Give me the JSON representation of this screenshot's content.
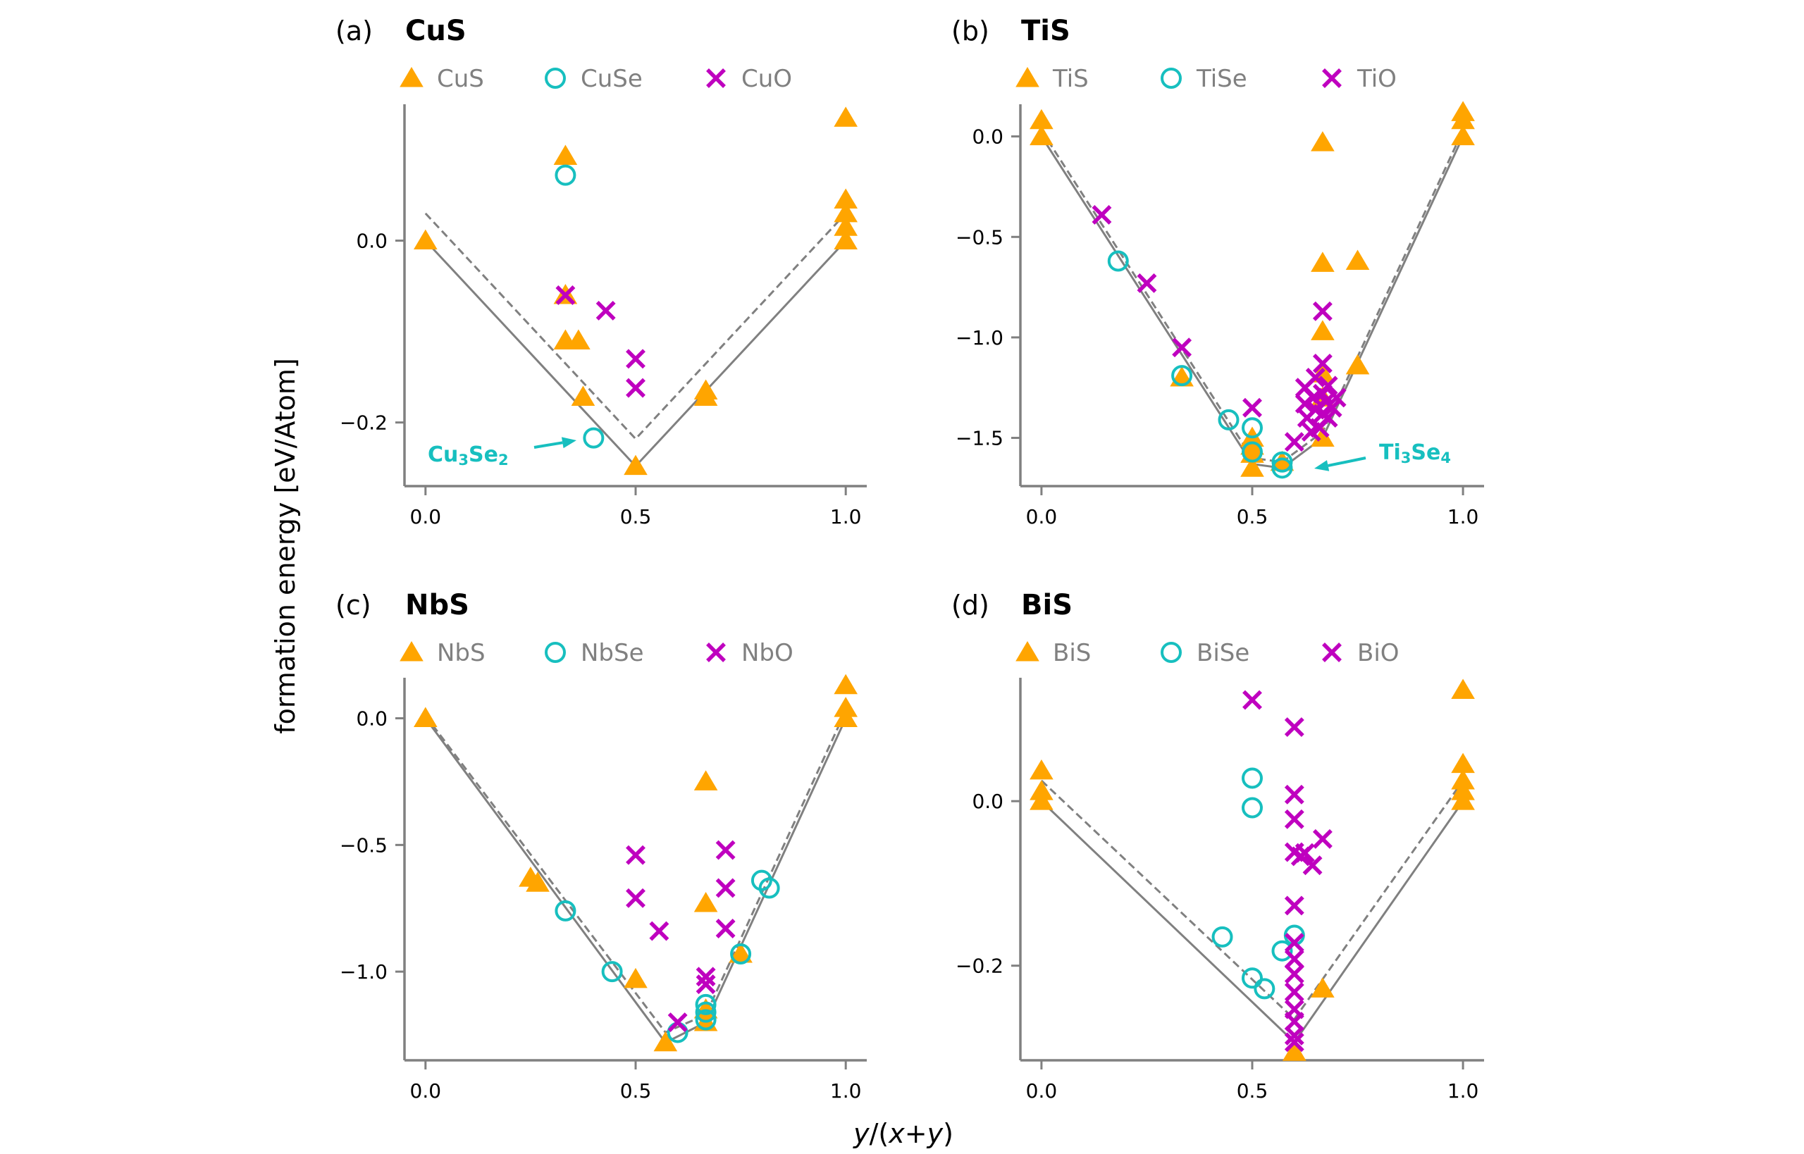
{
  "xlabel": "y/(x+y)",
  "ylabel": "formation energy [eV/Atom]",
  "colors": {
    "triangle": "#ffa500",
    "circle": "#17bfbf",
    "cross": "#bf00bf",
    "line": "#808080",
    "axis": "#808080"
  },
  "chart_data": [
    {
      "type": "scatter",
      "panel": "(a)",
      "title": "CuS",
      "legend": [
        "CuS",
        "CuSe",
        "CuO"
      ],
      "xlim": [
        -0.05,
        1.05
      ],
      "ylim": [
        -0.27,
        0.15
      ],
      "xticks": [
        0.0,
        0.5,
        1.0
      ],
      "yticks": [
        0.0,
        -0.2
      ],
      "series": [
        {
          "name": "CuS",
          "marker": "triangle",
          "points": [
            [
              0,
              0
            ],
            [
              0.333,
              0.093
            ],
            [
              0.333,
              -0.06
            ],
            [
              0.333,
              -0.11
            ],
            [
              0.364,
              -0.11
            ],
            [
              0.375,
              -0.172
            ],
            [
              0.5,
              -0.248
            ],
            [
              0.667,
              -0.165
            ],
            [
              0.667,
              -0.172
            ],
            [
              1,
              0.135
            ],
            [
              1,
              0.045
            ],
            [
              1,
              0.03
            ],
            [
              1,
              0.015
            ],
            [
              1,
              0.0
            ]
          ]
        },
        {
          "name": "CuSe",
          "marker": "circle",
          "points": [
            [
              0.333,
              0.072
            ],
            [
              0.4,
              -0.217
            ]
          ]
        },
        {
          "name": "CuO",
          "marker": "cross",
          "points": [
            [
              0.333,
              -0.06
            ],
            [
              0.429,
              -0.077
            ],
            [
              0.5,
              -0.13
            ],
            [
              0.5,
              -0.162
            ]
          ]
        }
      ],
      "hull_solid": [
        [
          0,
          0
        ],
        [
          0.5,
          -0.248
        ],
        [
          1,
          0
        ]
      ],
      "hull_dashed": [
        [
          0,
          0.03
        ],
        [
          0.5,
          -0.218
        ],
        [
          1,
          0.03
        ]
      ],
      "annotation": {
        "text": "Cu",
        "sub1": "3",
        "mid": "Se",
        "sub2": "2",
        "target": [
          0.4,
          -0.217
        ]
      }
    },
    {
      "type": "scatter",
      "panel": "(b)",
      "title": "TiS",
      "legend": [
        "TiS",
        "TiSe",
        "TiO"
      ],
      "xlim": [
        -0.05,
        1.05
      ],
      "ylim": [
        -1.74,
        0.16
      ],
      "xticks": [
        0.0,
        0.5,
        1.0
      ],
      "yticks": [
        0.0,
        -0.5,
        -1.0,
        -1.5
      ],
      "series": [
        {
          "name": "TiS",
          "marker": "triangle",
          "points": [
            [
              0,
              0.08
            ],
            [
              0,
              0.0
            ],
            [
              0.333,
              -1.2
            ],
            [
              0.5,
              -1.5
            ],
            [
              0.5,
              -1.54
            ],
            [
              0.5,
              -1.58
            ],
            [
              0.5,
              -1.65
            ],
            [
              0.571,
              -1.62
            ],
            [
              0.667,
              -0.03
            ],
            [
              0.667,
              -0.63
            ],
            [
              0.667,
              -0.97
            ],
            [
              0.667,
              -1.18
            ],
            [
              0.667,
              -1.3
            ],
            [
              0.667,
              -1.5
            ],
            [
              0.75,
              -0.62
            ],
            [
              0.75,
              -1.14
            ],
            [
              1,
              0.12
            ],
            [
              1,
              0.08
            ],
            [
              1,
              0.0
            ]
          ]
        },
        {
          "name": "TiSe",
          "marker": "circle",
          "points": [
            [
              0.182,
              -0.62
            ],
            [
              0.333,
              -1.19
            ],
            [
              0.444,
              -1.41
            ],
            [
              0.5,
              -1.45
            ],
            [
              0.5,
              -1.57
            ],
            [
              0.571,
              -1.65
            ],
            [
              0.571,
              -1.62
            ]
          ]
        },
        {
          "name": "TiO",
          "marker": "cross",
          "points": [
            [
              0.143,
              -0.39
            ],
            [
              0.25,
              -0.73
            ],
            [
              0.333,
              -1.05
            ],
            [
              0.5,
              -1.35
            ],
            [
              0.6,
              -1.52
            ],
            [
              0.625,
              -1.25
            ],
            [
              0.625,
              -1.33
            ],
            [
              0.63,
              -1.4
            ],
            [
              0.64,
              -1.47
            ],
            [
              0.645,
              -1.3
            ],
            [
              0.65,
              -1.2
            ],
            [
              0.65,
              -1.36
            ],
            [
              0.66,
              -1.45
            ],
            [
              0.667,
              -0.87
            ],
            [
              0.667,
              -1.13
            ],
            [
              0.667,
              -1.28
            ],
            [
              0.667,
              -1.38
            ],
            [
              0.675,
              -1.32
            ],
            [
              0.68,
              -1.24
            ],
            [
              0.68,
              -1.4
            ],
            [
              0.69,
              -1.35
            ],
            [
              0.7,
              -1.3
            ]
          ]
        }
      ],
      "hull_solid": [
        [
          0,
          0
        ],
        [
          0.5,
          -1.63
        ],
        [
          0.571,
          -1.65
        ],
        [
          0.667,
          -1.5
        ],
        [
          1,
          0
        ]
      ],
      "hull_dashed": [
        [
          0,
          0.03
        ],
        [
          0.5,
          -1.6
        ],
        [
          0.571,
          -1.62
        ],
        [
          0.667,
          -1.47
        ],
        [
          1,
          0.03
        ]
      ],
      "annotation": {
        "text": "Ti",
        "sub1": "3",
        "mid": "Se",
        "sub2": "4",
        "target": [
          0.571,
          -1.65
        ]
      }
    },
    {
      "type": "scatter",
      "panel": "(c)",
      "title": "NbS",
      "legend": [
        "NbS",
        "NbSe",
        "NbO"
      ],
      "xlim": [
        -0.05,
        1.05
      ],
      "ylim": [
        -1.35,
        0.16
      ],
      "xticks": [
        0.0,
        0.5,
        1.0
      ],
      "yticks": [
        0.0,
        -0.5,
        -1.0
      ],
      "series": [
        {
          "name": "NbS",
          "marker": "triangle",
          "points": [
            [
              0,
              0
            ],
            [
              0.25,
              -0.63
            ],
            [
              0.267,
              -0.65
            ],
            [
              0.5,
              -1.03
            ],
            [
              0.571,
              -1.28
            ],
            [
              0.667,
              -0.25
            ],
            [
              0.667,
              -0.73
            ],
            [
              0.667,
              -1.15
            ],
            [
              0.667,
              -1.2
            ],
            [
              0.75,
              -0.93
            ],
            [
              1,
              0.13
            ],
            [
              1,
              0.04
            ],
            [
              1,
              0.0
            ]
          ]
        },
        {
          "name": "NbSe",
          "marker": "circle",
          "points": [
            [
              0.333,
              -0.76
            ],
            [
              0.444,
              -1.0
            ],
            [
              0.6,
              -1.24
            ],
            [
              0.667,
              -1.13
            ],
            [
              0.667,
              -1.16
            ],
            [
              0.667,
              -1.19
            ],
            [
              0.75,
              -0.93
            ],
            [
              0.8,
              -0.64
            ],
            [
              0.818,
              -0.67
            ]
          ]
        },
        {
          "name": "NbO",
          "marker": "cross",
          "points": [
            [
              0.5,
              -0.54
            ],
            [
              0.5,
              -0.71
            ],
            [
              0.556,
              -0.84
            ],
            [
              0.6,
              -1.2
            ],
            [
              0.667,
              -1.02
            ],
            [
              0.667,
              -1.05
            ],
            [
              0.714,
              -0.52
            ],
            [
              0.714,
              -0.67
            ],
            [
              0.714,
              -0.83
            ]
          ]
        }
      ],
      "hull_solid": [
        [
          0,
          0
        ],
        [
          0.571,
          -1.28
        ],
        [
          0.667,
          -1.2
        ],
        [
          1,
          0
        ]
      ],
      "hull_dashed": [
        [
          0,
          0.01
        ],
        [
          0.571,
          -1.24
        ],
        [
          0.667,
          -1.17
        ],
        [
          1,
          0.03
        ]
      ]
    },
    {
      "type": "scatter",
      "panel": "(d)",
      "title": "BiS",
      "legend": [
        "BiS",
        "BiSe",
        "BiO"
      ],
      "xlim": [
        -0.05,
        1.05
      ],
      "ylim": [
        -0.315,
        0.15
      ],
      "xticks": [
        0.0,
        0.5,
        1.0
      ],
      "yticks": [
        0.0,
        -0.2
      ],
      "series": [
        {
          "name": "BiS",
          "marker": "triangle",
          "points": [
            [
              0,
              0.037
            ],
            [
              0,
              0.012
            ],
            [
              0,
              0.0
            ],
            [
              0.6,
              -0.305
            ],
            [
              0.667,
              -0.228
            ],
            [
              1,
              0.135
            ],
            [
              1,
              0.045
            ],
            [
              1,
              0.025
            ],
            [
              1,
              0.012
            ],
            [
              1,
              0.0
            ]
          ]
        },
        {
          "name": "BiSe",
          "marker": "circle",
          "points": [
            [
              0.429,
              -0.165
            ],
            [
              0.5,
              0.028
            ],
            [
              0.5,
              -0.008
            ],
            [
              0.5,
              -0.215
            ],
            [
              0.529,
              -0.228
            ],
            [
              0.571,
              -0.182
            ],
            [
              0.6,
              -0.163
            ]
          ]
        },
        {
          "name": "BiO",
          "marker": "cross",
          "points": [
            [
              0.5,
              0.123
            ],
            [
              0.6,
              0.09
            ],
            [
              0.6,
              0.008
            ],
            [
              0.6,
              -0.022
            ],
            [
              0.6,
              -0.062
            ],
            [
              0.6,
              -0.127
            ],
            [
              0.6,
              -0.172
            ],
            [
              0.6,
              -0.192
            ],
            [
              0.6,
              -0.21
            ],
            [
              0.6,
              -0.232
            ],
            [
              0.6,
              -0.253
            ],
            [
              0.6,
              -0.268
            ],
            [
              0.6,
              -0.285
            ],
            [
              0.6,
              -0.293
            ],
            [
              0.615,
              -0.067
            ],
            [
              0.625,
              -0.063
            ],
            [
              0.643,
              -0.078
            ],
            [
              0.667,
              -0.046
            ]
          ]
        }
      ],
      "hull_solid": [
        [
          0,
          0
        ],
        [
          0.6,
          -0.293
        ],
        [
          1,
          0
        ]
      ],
      "hull_dashed": [
        [
          0,
          0.025
        ],
        [
          0.6,
          -0.265
        ],
        [
          1,
          0.025
        ]
      ]
    }
  ]
}
